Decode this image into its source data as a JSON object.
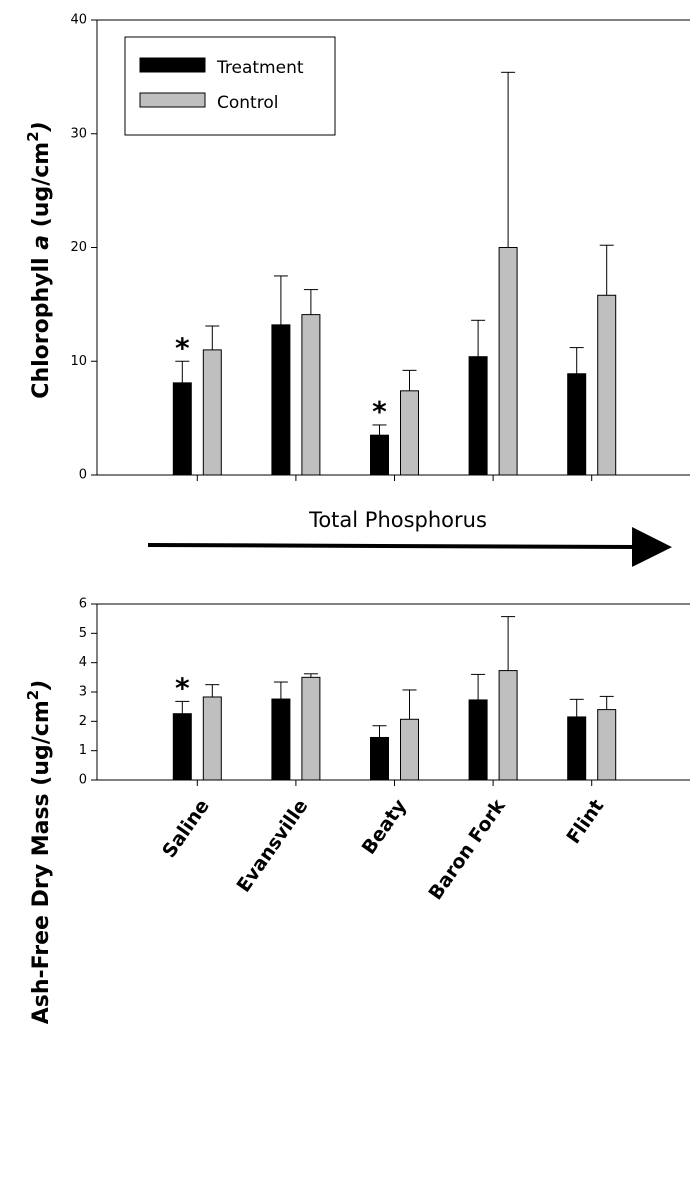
{
  "chart_data": [
    {
      "type": "bar",
      "ylabel_parts": [
        "Chlorophyll ",
        "a",
        " (ug/cm",
        "2",
        ")"
      ],
      "categories": [
        "Saline",
        "Evansville",
        "Beaty",
        "Baron Fork",
        "Flint"
      ],
      "series": [
        {
          "name": "Treatment",
          "color": "#000000",
          "values": [
            8.1,
            13.2,
            3.5,
            10.4,
            8.9
          ],
          "errors": [
            1.9,
            4.3,
            0.9,
            3.2,
            2.3
          ]
        },
        {
          "name": "Control",
          "color": "#bfbfbf",
          "values": [
            11.0,
            14.1,
            7.4,
            20.0,
            15.8
          ],
          "errors": [
            2.1,
            2.2,
            1.8,
            15.4,
            4.4
          ]
        }
      ],
      "ylim": [
        0,
        40
      ],
      "yticks": [
        0,
        10,
        20,
        30,
        40
      ],
      "legend": "upper left",
      "show_category_labels": false,
      "annotations": [
        {
          "text": "*",
          "category": "Saline",
          "series": "Treatment"
        },
        {
          "text": "*",
          "category": "Beaty",
          "series": "Treatment"
        }
      ]
    },
    {
      "type": "bar",
      "ylabel_parts": [
        "Ash-Free Dry Mass (ug/cm",
        "2",
        ")"
      ],
      "categories": [
        "Saline",
        "Evansville",
        "Beaty",
        "Baron Fork",
        "Flint"
      ],
      "series": [
        {
          "name": "Treatment",
          "color": "#000000",
          "values": [
            2.26,
            2.76,
            1.45,
            2.73,
            2.15
          ],
          "errors": [
            0.42,
            0.58,
            0.4,
            0.87,
            0.6
          ]
        },
        {
          "name": "Control",
          "color": "#bfbfbf",
          "values": [
            2.83,
            3.5,
            2.07,
            3.73,
            2.4
          ],
          "errors": [
            0.42,
            0.12,
            1.0,
            1.84,
            0.45
          ]
        }
      ],
      "ylim": [
        0,
        6
      ],
      "yticks": [
        0,
        1,
        2,
        3,
        4,
        5,
        6
      ],
      "legend": null,
      "show_category_labels": true,
      "annotations": [
        {
          "text": "*",
          "category": "Saline",
          "series": "Treatment"
        }
      ]
    }
  ],
  "gradient_label": "Total Phosphorus"
}
